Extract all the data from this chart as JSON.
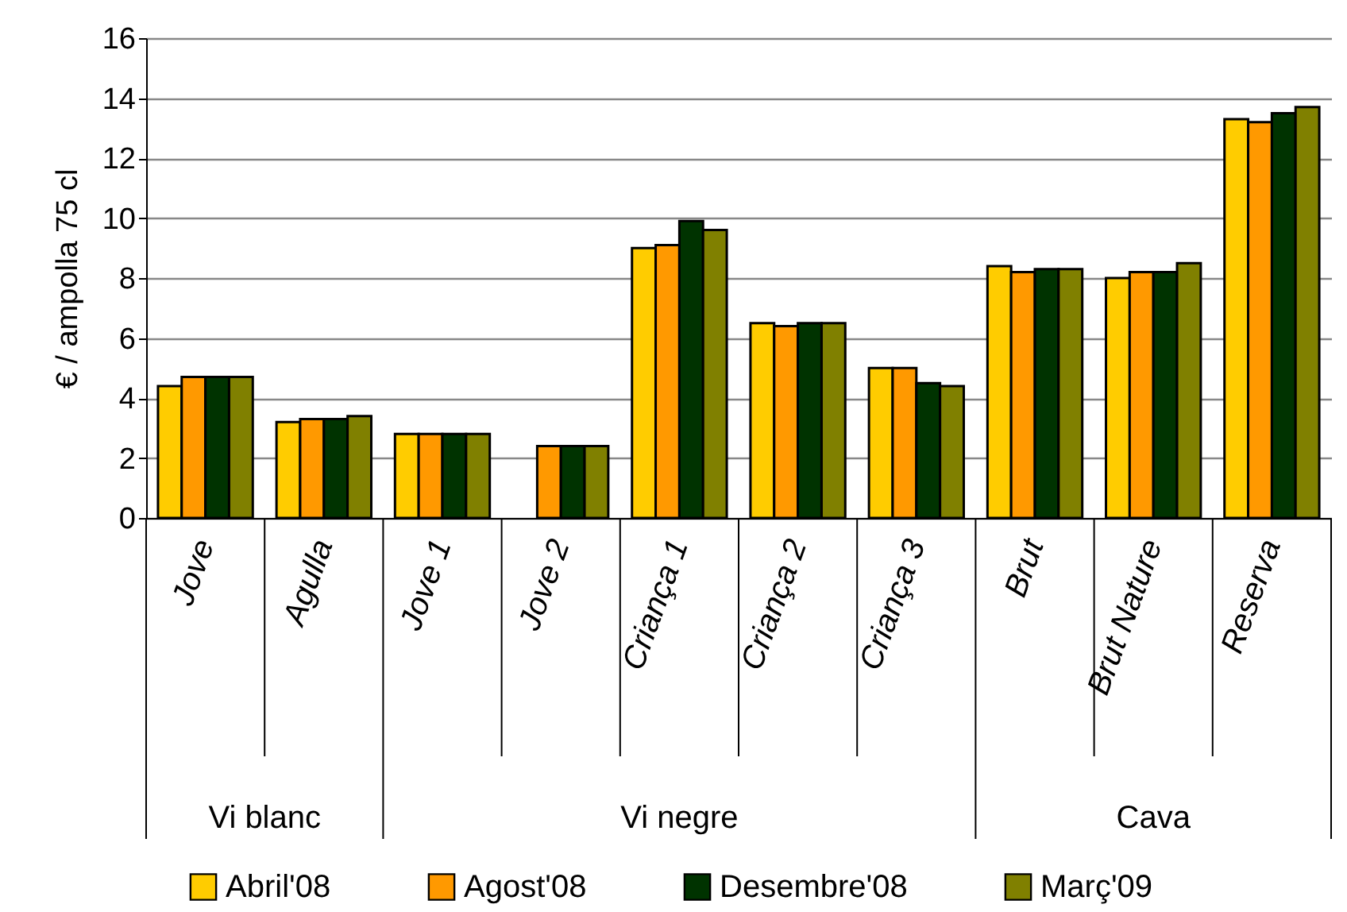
{
  "chart_data": {
    "type": "bar",
    "ylabel": "€ / ampolla  75 cl",
    "categories": [
      "Jove",
      "Agulla",
      "Jove 1",
      "Jove 2",
      "Criança 1",
      "Criança 2",
      "Criança 3",
      "Brut",
      "Brut Nature",
      "Reserva"
    ],
    "annotations": [
      "Vi blanc",
      "Vi negre",
      "Cava"
    ],
    "series": [
      {
        "name": "Abril'08",
        "color": "#ffcc00",
        "values": [
          4.4,
          3.2,
          2.8,
          null,
          9.0,
          6.5,
          5.0,
          8.4,
          8.0,
          13.3
        ]
      },
      {
        "name": "Agost'08",
        "color": "#ff9900",
        "values": [
          4.7,
          3.3,
          2.8,
          2.4,
          9.1,
          6.4,
          5.0,
          8.2,
          8.2,
          13.2
        ]
      },
      {
        "name": "Desembre'08",
        "color": "#003300",
        "values": [
          4.7,
          3.3,
          2.8,
          2.4,
          9.9,
          6.5,
          4.5,
          8.3,
          8.2,
          13.5
        ]
      },
      {
        "name": "Març'09",
        "color": "#808000",
        "values": [
          4.7,
          3.4,
          2.8,
          2.4,
          9.6,
          6.5,
          4.4,
          8.3,
          8.5,
          13.7
        ]
      }
    ],
    "ylim": [
      0,
      16
    ],
    "yticks": [
      0,
      2,
      4,
      6,
      8,
      10,
      12,
      14,
      16
    ],
    "grid": "y",
    "legend": "bottom"
  }
}
